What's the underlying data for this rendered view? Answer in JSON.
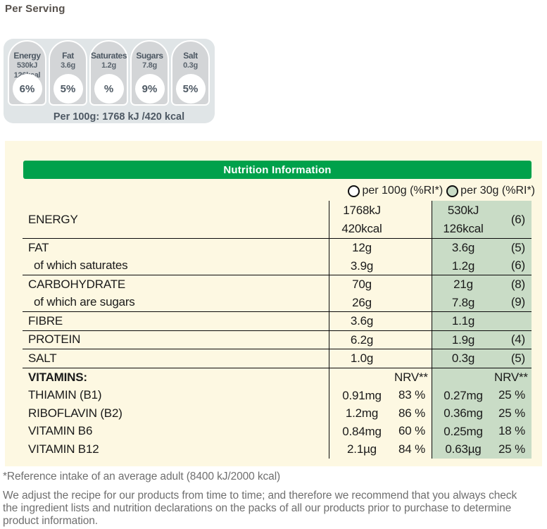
{
  "page": {
    "per_serving_title": "Per Serving"
  },
  "gda": {
    "badges": [
      {
        "label": "Energy",
        "values": [
          "530kJ",
          "126kcal"
        ],
        "percent": "6%"
      },
      {
        "label": "Fat",
        "values": [
          "3.6g"
        ],
        "percent": "5%"
      },
      {
        "label": "Saturates",
        "values": [
          "1.2g"
        ],
        "percent": "%"
      },
      {
        "label": "Sugars",
        "values": [
          "7.8g"
        ],
        "percent": "9%"
      },
      {
        "label": "Salt",
        "values": [
          "0.3g"
        ],
        "percent": "5%"
      }
    ],
    "per_100g_line": "Per 100g: 1768 kJ /420 kcal"
  },
  "panel": {
    "title": "Nutrition Information",
    "columns": [
      {
        "label": "per 100g (%RI*)",
        "selected": false
      },
      {
        "label": "per 30g (%RI*)",
        "selected": true
      }
    ],
    "rows": [
      {
        "label": "ENERGY",
        "indent": false,
        "bold": false,
        "divider_top": false,
        "per100g": {
          "lines": [
            "1768kJ",
            "420kcal"
          ]
        },
        "per30g": {
          "lines": [
            "530kJ",
            "126kcal"
          ],
          "nrv": "(6)"
        }
      },
      {
        "label": "FAT",
        "indent": false,
        "bold": false,
        "divider_top": true,
        "per100g": {
          "amount": "12g"
        },
        "per30g": {
          "amount": "3.6g",
          "nrv": "(5)"
        }
      },
      {
        "label": "of which saturates",
        "indent": true,
        "bold": false,
        "divider_top": false,
        "per100g": {
          "amount": "3.9g"
        },
        "per30g": {
          "amount": "1.2g",
          "nrv": "(6)"
        }
      },
      {
        "label": "CARBOHYDRATE",
        "indent": false,
        "bold": false,
        "divider_top": true,
        "per100g": {
          "amount": "70g"
        },
        "per30g": {
          "amount": "21g",
          "nrv": "(8)"
        }
      },
      {
        "label": "of which are sugars",
        "indent": true,
        "bold": false,
        "divider_top": false,
        "per100g": {
          "amount": "26g"
        },
        "per30g": {
          "amount": "7.8g",
          "nrv": "(9)"
        }
      },
      {
        "label": "FIBRE",
        "indent": false,
        "bold": false,
        "divider_top": true,
        "per100g": {
          "amount": "3.6g"
        },
        "per30g": {
          "amount": "1.1g"
        }
      },
      {
        "label": "PROTEIN",
        "indent": false,
        "bold": false,
        "divider_top": true,
        "per100g": {
          "amount": "6.2g"
        },
        "per30g": {
          "amount": "1.9g",
          "nrv": "(4)"
        }
      },
      {
        "label": "SALT",
        "indent": false,
        "bold": false,
        "divider_top": true,
        "per100g": {
          "amount": "1.0g"
        },
        "per30g": {
          "amount": "0.3g",
          "nrv": "(5)"
        }
      },
      {
        "label": "VITAMINS:",
        "indent": false,
        "bold": true,
        "divider_top": true,
        "vheader": true,
        "per100g": {
          "nrv": "NRV**"
        },
        "per30g": {
          "nrv": "NRV**"
        }
      },
      {
        "label": "THIAMIN (B1)",
        "indent": false,
        "bold": false,
        "divider_top": false,
        "per100g": {
          "amount": "0.91mg",
          "nrv": "83 %"
        },
        "per30g": {
          "amount": "0.27mg",
          "nrv": "25 %"
        }
      },
      {
        "label": "RIBOFLAVIN (B2)",
        "indent": false,
        "bold": false,
        "divider_top": false,
        "per100g": {
          "amount": "1.2mg",
          "nrv": "86 %"
        },
        "per30g": {
          "amount": "0.36mg",
          "nrv": "25 %"
        }
      },
      {
        "label": "VITAMIN B6",
        "indent": false,
        "bold": false,
        "divider_top": false,
        "per100g": {
          "amount": "0.84mg",
          "nrv": "60 %"
        },
        "per30g": {
          "amount": "0.25mg",
          "nrv": "18 %"
        }
      },
      {
        "label": "VITAMIN B12",
        "indent": false,
        "bold": false,
        "divider_top": false,
        "per100g": {
          "amount": "2.1µg",
          "nrv": "84 %"
        },
        "per30g": {
          "amount": "0.63µg",
          "nrv": "25 %"
        }
      }
    ]
  },
  "footer": {
    "reference": "*Reference intake of an average adult (8400 kJ/2000 kcal)",
    "disclaimer": "We adjust the recipe for our products from time to time; and therefore we recommend that you always check the ingredient lists and nutrition declarations on the packs of all our products prior to purchase to determine product information."
  },
  "colors": {
    "header_green": "#00a14b",
    "column_green": "#c9dcc6",
    "panel_yellow": "#fdf8e2",
    "gda_gray": "#e0e5e7",
    "badge_gray": "#d3d5d7",
    "badge_text": "#4d5863",
    "footer_gray": "#6f6f6f"
  }
}
